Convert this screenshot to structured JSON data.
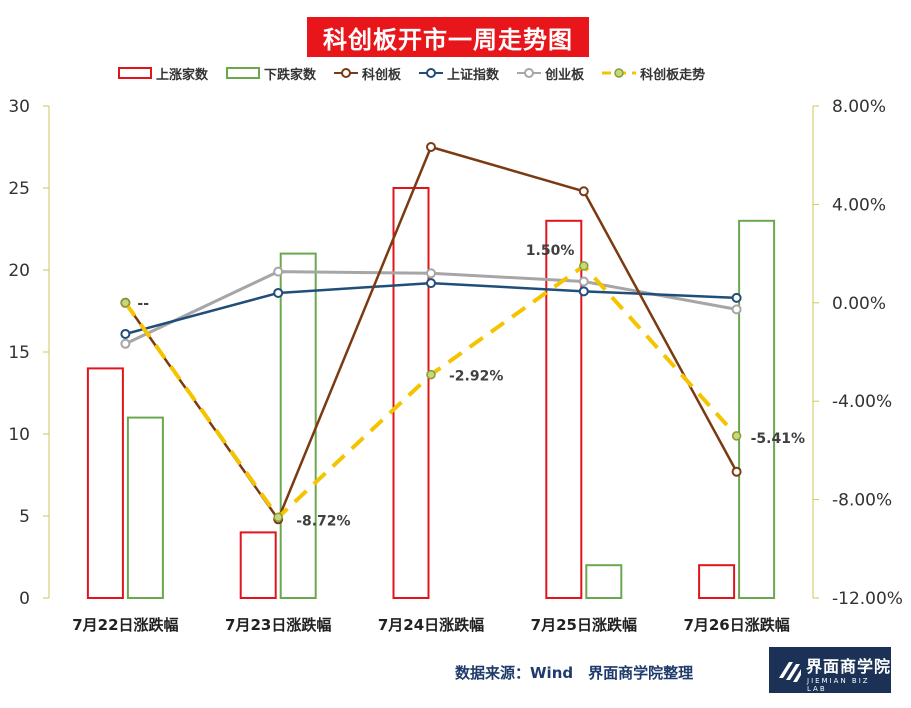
{
  "title": "科创板开市一周走势图",
  "source": "数据来源：Wind　界面商学院整理",
  "logo": {
    "cn": "界面商学院",
    "en": "JIEMIAN BIZ LAB"
  },
  "colors": {
    "up_bar": "#e2141b",
    "down_bar": "#6aa84f",
    "kcb": "#7b3a12",
    "sz": "#1f4e79",
    "cyb": "#a6a6a6",
    "kcb_trend": "#f5c400",
    "left_axis": "#d4c65a",
    "right_axis": "#d4c65a"
  },
  "chart_data": {
    "type": "bar",
    "categories": [
      "7月22日涨跌幅",
      "7月23日涨跌幅",
      "7月24日涨跌幅",
      "7月25日涨跌幅",
      "7月26日涨跌幅"
    ],
    "left_axis": {
      "ylim": [
        0,
        30
      ],
      "ticks": [
        "0",
        "5",
        "10",
        "15",
        "20",
        "25",
        "30"
      ]
    },
    "right_axis": {
      "ylim": [
        -12,
        8
      ],
      "ticks": [
        "-12.00%",
        "-8.00%",
        "-4.00%",
        "0.00%",
        "4.00%",
        "8.00%"
      ]
    },
    "grid": false,
    "legend_position": "top",
    "series": [
      {
        "name": "上涨家数",
        "type": "bar",
        "axis": "left",
        "values": [
          14,
          4,
          25,
          23,
          2
        ]
      },
      {
        "name": "下跌家数",
        "type": "bar",
        "axis": "left",
        "values": [
          11,
          21,
          0,
          2,
          23
        ]
      },
      {
        "name": "科创板",
        "type": "line",
        "axis": "left",
        "values": [
          18,
          4.8,
          27.5,
          24.8,
          7.7
        ]
      },
      {
        "name": "上证指数",
        "type": "line",
        "axis": "left",
        "values": [
          16.1,
          18.6,
          19.2,
          18.7,
          18.3
        ]
      },
      {
        "name": "创业板",
        "type": "line",
        "axis": "left",
        "values": [
          15.5,
          19.9,
          19.8,
          19.3,
          17.6
        ]
      },
      {
        "name": "科创板走势",
        "type": "line",
        "axis": "right",
        "values": [
          0.0,
          -8.72,
          -2.92,
          1.5,
          -5.41
        ]
      }
    ],
    "data_labels": [
      "--",
      "-8.72%",
      "-2.92%",
      "1.50%",
      "-5.41%"
    ]
  }
}
